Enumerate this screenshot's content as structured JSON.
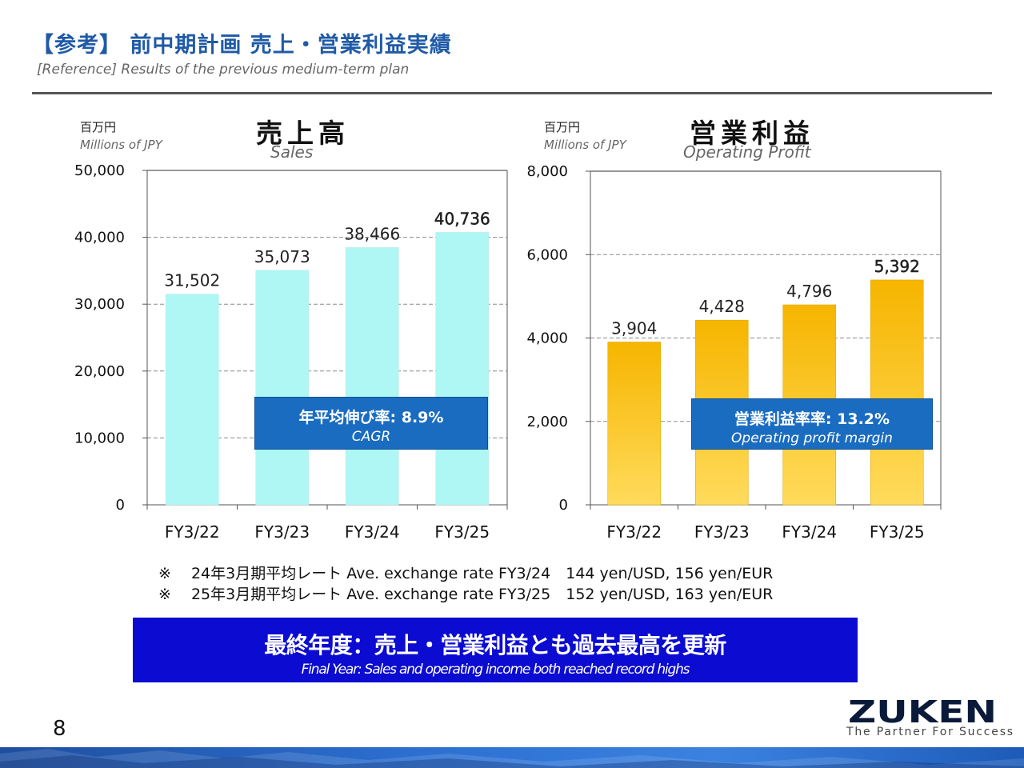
{
  "header": {
    "title": "【参考】 前中期計画 売上・営業利益実績",
    "subtitle": "[Reference] Results of the previous medium-term plan"
  },
  "charts": {
    "sales": {
      "unit_jp": "百万円",
      "unit_en": "Millions of JPY",
      "title_jp": "売上高",
      "title_en": "Sales",
      "callout_jp": "年平均伸び率: 8.9%",
      "callout_en": "CAGR",
      "bar_color_top": "#aef7f4",
      "bar_color_bottom": "#aef7f4"
    },
    "profit": {
      "unit_jp": "百万円",
      "unit_en": "Millions of JPY",
      "title_jp": "営業利益",
      "title_en": "Operating Profit",
      "callout_jp": "営業利益率率: 13.2%",
      "callout_en": "Operating profit margin",
      "bar_color_top": "#f6b500",
      "bar_color_bottom": "#ffdb5c"
    }
  },
  "chart_data": [
    {
      "type": "bar",
      "title": "売上高",
      "subtitle": "Sales",
      "ylabel": "百万円 Millions of JPY",
      "categories": [
        "FY3/22",
        "FY3/23",
        "FY3/24",
        "FY3/25"
      ],
      "values": [
        31502,
        35073,
        38466,
        40736
      ],
      "value_labels": [
        "31,502",
        "35,073",
        "38,466",
        "40,736"
      ],
      "ylim": [
        0,
        50000
      ],
      "yticks": [
        0,
        10000,
        20000,
        30000,
        40000,
        50000
      ],
      "ytick_labels": [
        "0",
        "10,000",
        "20,000",
        "30,000",
        "40,000",
        "50,000"
      ],
      "grid": true,
      "annotation": "年平均伸び率: 8.9% CAGR"
    },
    {
      "type": "bar",
      "title": "営業利益",
      "subtitle": "Operating Profit",
      "ylabel": "百万円 Millions of JPY",
      "categories": [
        "FY3/22",
        "FY3/23",
        "FY3/24",
        "FY3/25"
      ],
      "values": [
        3904,
        4428,
        4796,
        5392
      ],
      "value_labels": [
        "3,904",
        "4,428",
        "4,796",
        "5,392"
      ],
      "ylim": [
        0,
        8000
      ],
      "yticks": [
        0,
        2000,
        4000,
        6000,
        8000
      ],
      "ytick_labels": [
        "0",
        "2,000",
        "4,000",
        "6,000",
        "8,000"
      ],
      "grid": true,
      "annotation": "営業利益率率: 13.2% Operating profit margin"
    }
  ],
  "notes": [
    "※　 24年3月期平均レート Ave. exchange rate FY3/24　144 yen/USD, 156 yen/EUR",
    "※　 25年3月期平均レート Ave. exchange rate FY3/25　152 yen/USD, 163 yen/EUR"
  ],
  "banner": {
    "jp": "最終年度：売上・営業利益とも過去最高を更新",
    "en": "Final Year: Sales and operating income both reached record highs"
  },
  "footer": {
    "page_number": "8",
    "logo_text": "ZUKEN",
    "tagline": "The Partner For Success",
    "brand_color": "#0b1a3a"
  }
}
